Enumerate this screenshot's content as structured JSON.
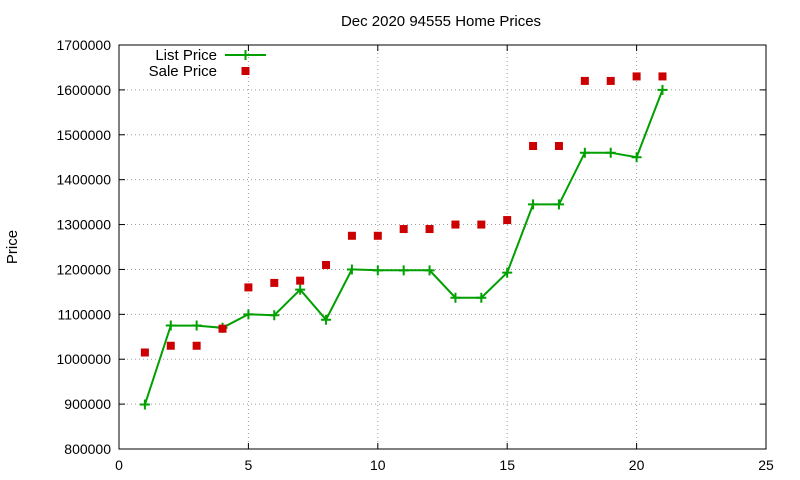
{
  "chart_data": {
    "type": "line",
    "title": "Dec 2020 94555 Home Prices",
    "xlabel": "",
    "ylabel": "Price",
    "xlim": [
      0,
      25
    ],
    "ylim": [
      800000,
      1700000
    ],
    "x_ticks": [
      0,
      5,
      10,
      15,
      20,
      25
    ],
    "y_ticks": [
      800000,
      900000,
      1000000,
      1100000,
      1200000,
      1300000,
      1400000,
      1500000,
      1600000,
      1700000
    ],
    "grid": true,
    "legend_position": "top-left",
    "series": [
      {
        "name": "List Price",
        "style": "line-with-plus-markers",
        "color": "#00a000",
        "x": [
          1,
          2,
          3,
          4,
          5,
          6,
          7,
          8,
          9,
          10,
          11,
          12,
          13,
          14,
          15,
          16,
          17,
          18,
          19,
          20,
          21
        ],
        "values": [
          899000,
          1075000,
          1075000,
          1070000,
          1100000,
          1098000,
          1155000,
          1088000,
          1200000,
          1198000,
          1198000,
          1198000,
          1137000,
          1137000,
          1193000,
          1345000,
          1345000,
          1460000,
          1460000,
          1450000,
          1600000
        ]
      },
      {
        "name": "Sale Price",
        "style": "square-markers",
        "color": "#cc0000",
        "x": [
          1,
          2,
          3,
          4,
          5,
          6,
          7,
          8,
          9,
          10,
          11,
          12,
          13,
          14,
          15,
          16,
          17,
          18,
          19,
          20,
          21
        ],
        "values": [
          1015000,
          1030000,
          1030000,
          1068000,
          1160000,
          1170000,
          1175000,
          1210000,
          1275000,
          1275000,
          1290000,
          1290000,
          1300000,
          1300000,
          1310000,
          1475000,
          1475000,
          1620000,
          1620000,
          1630000,
          1630000
        ]
      }
    ]
  }
}
